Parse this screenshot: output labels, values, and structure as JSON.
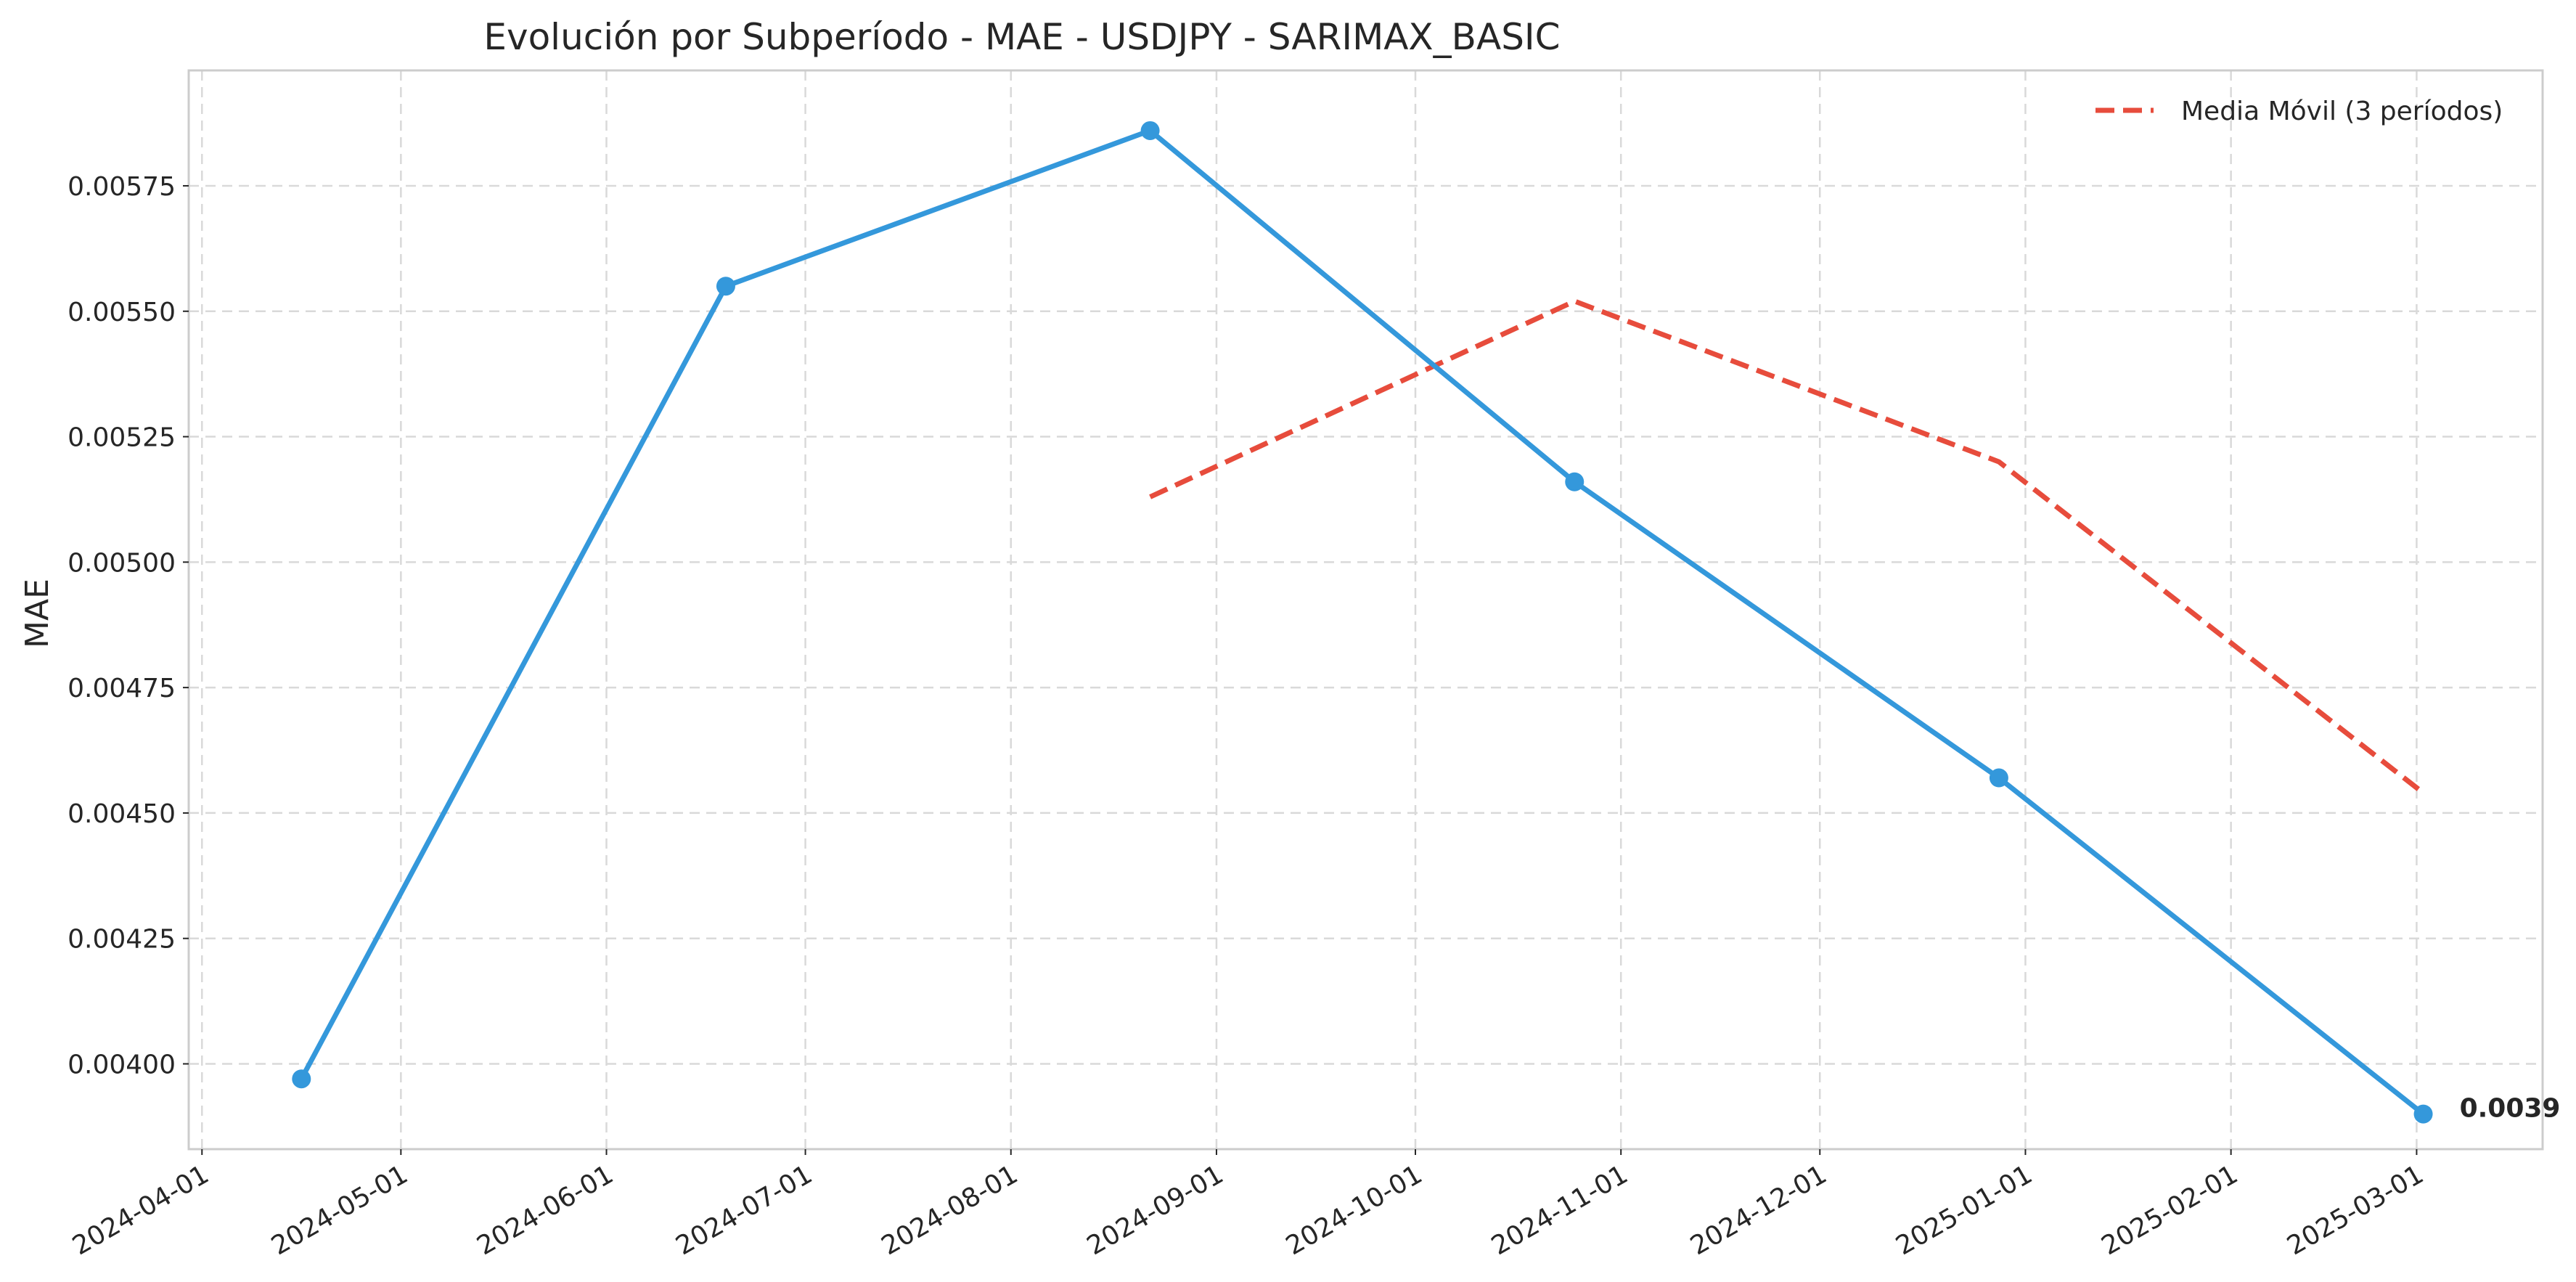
{
  "chart_data": {
    "type": "line",
    "title": "Evolución por Subperíodo - MAE - USDJPY - SARIMAX_BASIC",
    "xlabel": "",
    "ylabel": "MAE",
    "xlim": [
      "2024-03-30",
      "2025-03-20"
    ],
    "ylim": [
      0.00383,
      0.00598
    ],
    "x_ticks": [
      "2024-04-01",
      "2024-05-01",
      "2024-06-01",
      "2024-07-01",
      "2024-08-01",
      "2024-09-01",
      "2024-10-01",
      "2024-11-01",
      "2024-12-01",
      "2025-01-01",
      "2025-02-01",
      "2025-03-01"
    ],
    "y_ticks": [
      "0.00400",
      "0.00425",
      "0.00450",
      "0.00475",
      "0.00500",
      "0.00525",
      "0.00550",
      "0.00575"
    ],
    "grid": true,
    "legend_position": "top-right",
    "series": [
      {
        "name": "",
        "color": "#3498db",
        "style": "solid",
        "markers": true,
        "x": [
          "2024-04-16",
          "2024-06-19",
          "2024-08-22",
          "2024-10-25",
          "2024-12-28",
          "2025-03-02"
        ],
        "y": [
          0.00397,
          0.00555,
          0.00586,
          0.00516,
          0.00457,
          0.0039
        ]
      },
      {
        "name": "Media Móvil (3 períodos)",
        "color": "#e74c3c",
        "style": "dashed",
        "markers": false,
        "x": [
          "2024-08-22",
          "2024-10-25",
          "2024-12-28",
          "2025-03-02"
        ],
        "y": [
          0.00513,
          0.00552,
          0.0052,
          0.00454
        ]
      }
    ],
    "annotations": [
      {
        "text": "0.0039",
        "x": "2025-03-02",
        "y": 0.0039
      }
    ]
  }
}
